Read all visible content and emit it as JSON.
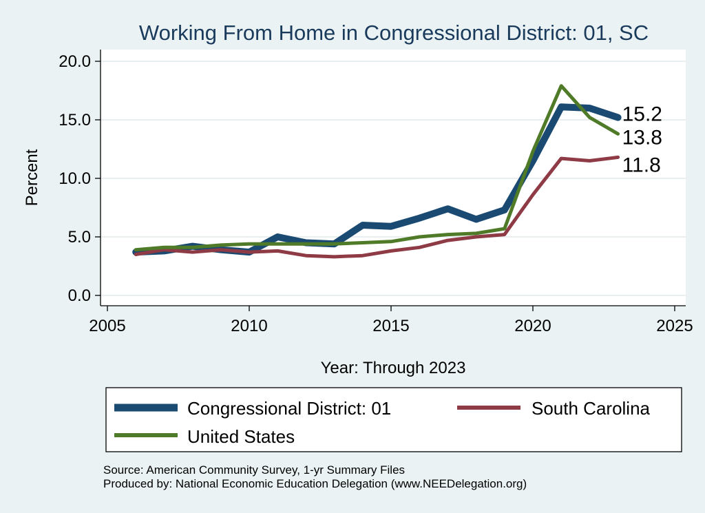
{
  "chart_data": {
    "type": "line",
    "title": "Working From Home in Congressional District: 01, SC",
    "xlabel": "Year: Through 2023",
    "ylabel": "Percent",
    "xlim": [
      2005,
      2025
    ],
    "ylim": [
      0,
      20
    ],
    "xticks": [
      "2005",
      "2010",
      "2015",
      "2020",
      "2025"
    ],
    "yticks": [
      "0.0",
      "5.0",
      "10.0",
      "15.0",
      "20.0"
    ],
    "grid": true,
    "legend_position": "bottom",
    "x": [
      2006,
      2007,
      2008,
      2009,
      2010,
      2011,
      2012,
      2013,
      2014,
      2015,
      2016,
      2017,
      2018,
      2019,
      2020,
      2021,
      2022,
      2023
    ],
    "series": [
      {
        "name": "Congressional District: 01",
        "color": "#1a4a72",
        "values": [
          3.7,
          3.8,
          4.2,
          3.9,
          3.7,
          5.0,
          4.5,
          4.4,
          6.0,
          5.9,
          6.6,
          7.4,
          6.5,
          7.3,
          11.5,
          16.1,
          16.0,
          15.2
        ],
        "end_label": "15.2"
      },
      {
        "name": "South Carolina",
        "color": "#8e3b46",
        "values": [
          3.5,
          3.9,
          3.7,
          3.9,
          3.7,
          3.8,
          3.4,
          3.3,
          3.4,
          3.8,
          4.1,
          4.7,
          5.0,
          5.2,
          8.6,
          11.7,
          11.5,
          11.8
        ],
        "end_label": "11.8"
      },
      {
        "name": "United States",
        "color": "#4f7a28",
        "values": [
          3.9,
          4.1,
          4.1,
          4.3,
          4.4,
          4.4,
          4.4,
          4.4,
          4.5,
          4.6,
          5.0,
          5.2,
          5.3,
          5.7,
          12.3,
          17.9,
          15.2,
          13.8
        ],
        "end_label": "13.8"
      }
    ],
    "source_note": "Source: American Community Survey, 1-yr Summary Files",
    "producer_note": "Produced by: National Economic Education Delegation (www.NEEDelegation.org)"
  }
}
